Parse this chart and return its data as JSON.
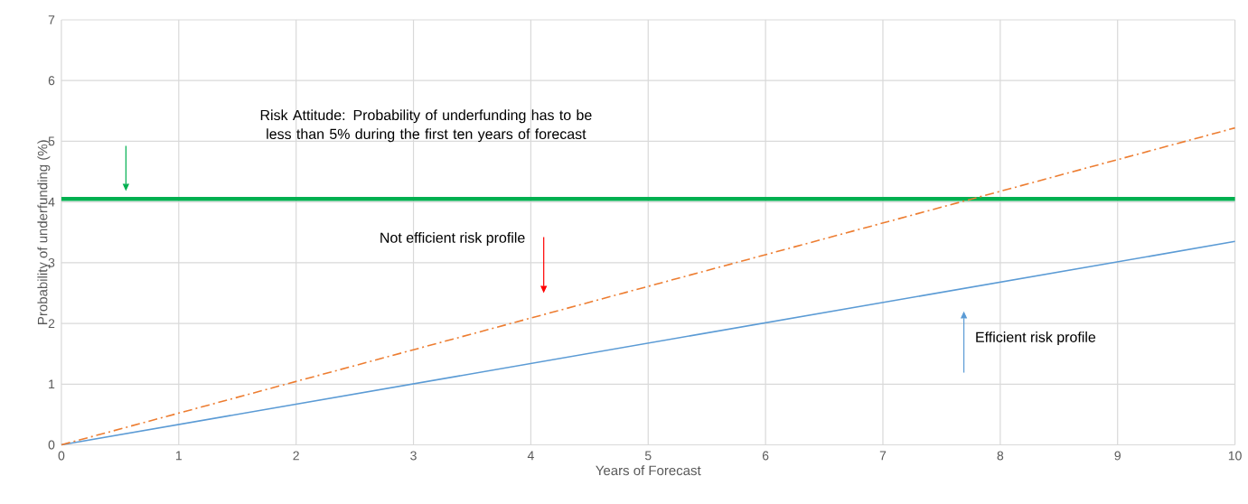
{
  "chart_data": {
    "type": "line",
    "xlabel": "Years of Forecast",
    "ylabel": "Probability of underfunding (%)",
    "series": [
      {
        "color": "#5b9bd5",
        "values": [
          0,
          3.35
        ],
        "line_style": "solid"
      },
      {
        "color": "#ed7d31",
        "values": [
          0,
          5.22
        ],
        "line_style": "dashed"
      }
    ],
    "x": [
      0,
      10
    ],
    "ref_lines": [
      {
        "axis": "y",
        "value": 4.05,
        "color": "#00b050"
      }
    ],
    "annotations": [
      "Risk Attitude: Probability of underfunding has to be less than 5% during the first ten years of forecast",
      "Not efficient risk profile",
      "Efficient risk profile"
    ],
    "xlim": [
      0,
      10
    ],
    "ylim": [
      0,
      7
    ],
    "xticks": [
      0,
      1,
      2,
      3,
      4,
      5,
      6,
      7,
      8,
      9,
      10
    ],
    "yticks": [
      0,
      1,
      2,
      3,
      4,
      5,
      6,
      7
    ],
    "grid": true
  }
}
